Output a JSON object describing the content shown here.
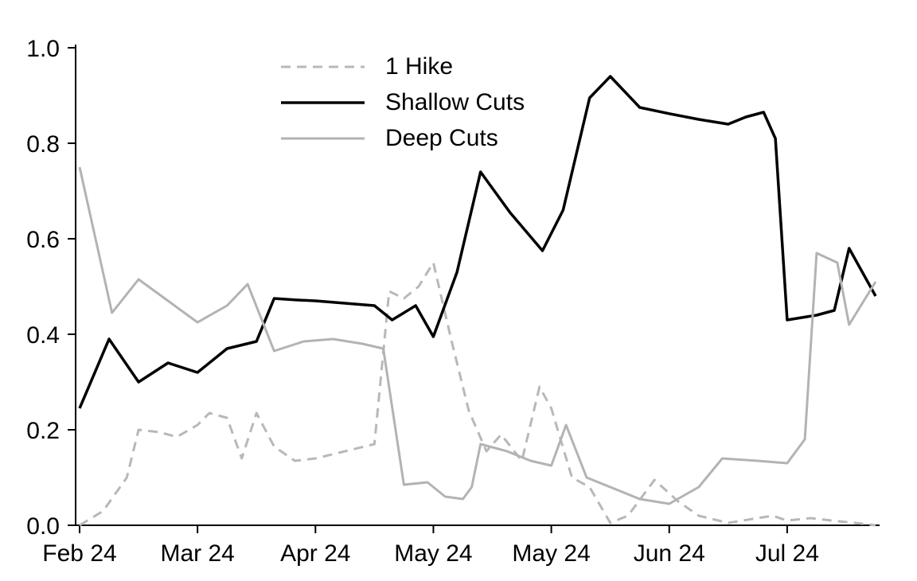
{
  "chart_data": {
    "type": "line",
    "title": "",
    "xlabel": "",
    "ylabel": "",
    "grid": false,
    "legend_position": "upper-left-inside",
    "xlim": [
      0,
      27
    ],
    "ylim": [
      0,
      1.0
    ],
    "y_ticks": {
      "values": [
        0,
        0.2,
        0.4,
        0.6,
        0.8,
        1.0
      ],
      "labels": [
        "0.0",
        "0.2",
        "0.4",
        "0.6",
        "0.8",
        "1.0"
      ]
    },
    "x_ticks": {
      "positions": [
        0,
        4,
        8,
        12,
        16,
        20,
        24
      ],
      "labels": [
        "Feb 24",
        "Mar 24",
        "Apr 24",
        "May 24",
        "May 24",
        "Jun 24",
        "Jul 24"
      ]
    },
    "axis_color": "#000000",
    "series": [
      {
        "name": "1 Hike",
        "color": "#b8b8b8",
        "style": "dashed",
        "width": 3,
        "points": [
          [
            0,
            0
          ],
          [
            0.8,
            0.03
          ],
          [
            1.6,
            0.1
          ],
          [
            2,
            0.2
          ],
          [
            2.7,
            0.195
          ],
          [
            3.3,
            0.185
          ],
          [
            4,
            0.21
          ],
          [
            4.4,
            0.235
          ],
          [
            5,
            0.225
          ],
          [
            5.5,
            0.14
          ],
          [
            6,
            0.235
          ],
          [
            6.6,
            0.165
          ],
          [
            7.3,
            0.135
          ],
          [
            8,
            0.14
          ],
          [
            9,
            0.155
          ],
          [
            10,
            0.17
          ],
          [
            10.5,
            0.49
          ],
          [
            11,
            0.475
          ],
          [
            11.5,
            0.5
          ],
          [
            12,
            0.55
          ],
          [
            12.6,
            0.39
          ],
          [
            13.2,
            0.24
          ],
          [
            13.8,
            0.155
          ],
          [
            14.3,
            0.19
          ],
          [
            15,
            0.135
          ],
          [
            15.6,
            0.29
          ],
          [
            16,
            0.245
          ],
          [
            16.7,
            0.1
          ],
          [
            17.3,
            0.08
          ],
          [
            18,
            0.005
          ],
          [
            18.6,
            0.02
          ],
          [
            19.5,
            0.095
          ],
          [
            20.3,
            0.05
          ],
          [
            21,
            0.02
          ],
          [
            22,
            0.005
          ],
          [
            23,
            0.015
          ],
          [
            23.5,
            0.02
          ],
          [
            24,
            0.01
          ],
          [
            24.8,
            0.015
          ],
          [
            25.5,
            0.01
          ],
          [
            26.3,
            0.005
          ],
          [
            27,
            0
          ]
        ]
      },
      {
        "name": "Shallow Cuts",
        "color": "#000000",
        "style": "solid",
        "width": 3.5,
        "points": [
          [
            0,
            0.245
          ],
          [
            1,
            0.39
          ],
          [
            2,
            0.3
          ],
          [
            3,
            0.34
          ],
          [
            4,
            0.32
          ],
          [
            5,
            0.37
          ],
          [
            6,
            0.385
          ],
          [
            6.6,
            0.475
          ],
          [
            7.3,
            0.472
          ],
          [
            8,
            0.47
          ],
          [
            9,
            0.465
          ],
          [
            10,
            0.46
          ],
          [
            10.6,
            0.43
          ],
          [
            11.4,
            0.46
          ],
          [
            12,
            0.395
          ],
          [
            12.8,
            0.53
          ],
          [
            13.6,
            0.74
          ],
          [
            14.6,
            0.655
          ],
          [
            15.7,
            0.575
          ],
          [
            16.4,
            0.66
          ],
          [
            17.3,
            0.895
          ],
          [
            18,
            0.94
          ],
          [
            19,
            0.875
          ],
          [
            20,
            0.862
          ],
          [
            21,
            0.85
          ],
          [
            22,
            0.84
          ],
          [
            22.6,
            0.855
          ],
          [
            23.2,
            0.865
          ],
          [
            23.6,
            0.81
          ],
          [
            24,
            0.43
          ],
          [
            25,
            0.44
          ],
          [
            25.6,
            0.45
          ],
          [
            26.1,
            0.58
          ],
          [
            27,
            0.48
          ]
        ]
      },
      {
        "name": "Deep Cuts",
        "color": "#b3b3b3",
        "style": "solid",
        "width": 3,
        "points": [
          [
            0,
            0.75
          ],
          [
            1.1,
            0.445
          ],
          [
            2,
            0.515
          ],
          [
            3,
            0.47
          ],
          [
            4,
            0.425
          ],
          [
            5,
            0.46
          ],
          [
            5.7,
            0.505
          ],
          [
            6.6,
            0.365
          ],
          [
            7.6,
            0.385
          ],
          [
            8.6,
            0.39
          ],
          [
            9.6,
            0.38
          ],
          [
            10.3,
            0.37
          ],
          [
            11,
            0.085
          ],
          [
            11.8,
            0.09
          ],
          [
            12.4,
            0.06
          ],
          [
            13,
            0.055
          ],
          [
            13.3,
            0.08
          ],
          [
            13.6,
            0.17
          ],
          [
            14.5,
            0.155
          ],
          [
            15.3,
            0.135
          ],
          [
            16,
            0.125
          ],
          [
            16.5,
            0.21
          ],
          [
            17.2,
            0.1
          ],
          [
            18,
            0.08
          ],
          [
            19,
            0.055
          ],
          [
            20,
            0.045
          ],
          [
            21,
            0.08
          ],
          [
            21.8,
            0.14
          ],
          [
            23,
            0.135
          ],
          [
            24,
            0.13
          ],
          [
            24.6,
            0.18
          ],
          [
            25,
            0.57
          ],
          [
            25.7,
            0.55
          ],
          [
            26.1,
            0.42
          ],
          [
            27,
            0.51
          ]
        ]
      }
    ]
  }
}
